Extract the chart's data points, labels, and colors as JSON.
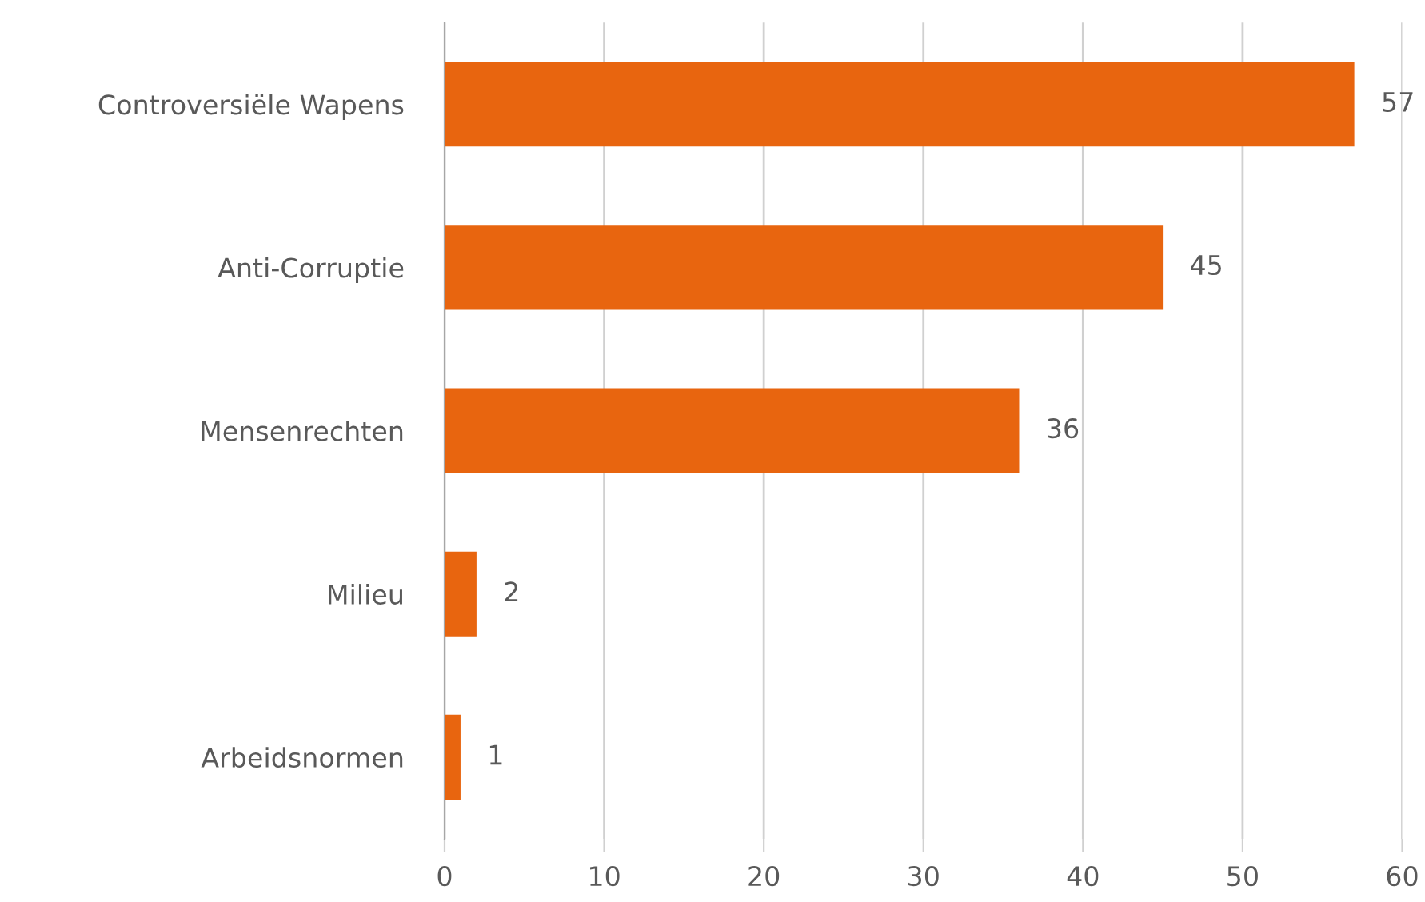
{
  "chart_data": {
    "type": "bar",
    "orientation": "horizontal",
    "categories": [
      "Controversiële Wapens",
      "Anti-Corruptie",
      "Mensenrechten",
      "Milieu",
      "Arbeidsnormen"
    ],
    "values": [
      57,
      45,
      36,
      2,
      1
    ],
    "color": "#e8650f",
    "xlim": [
      0,
      60
    ],
    "xticks": [
      0,
      10,
      20,
      30,
      40,
      50,
      60
    ],
    "grid": "x",
    "data_labels": true,
    "legend": false
  }
}
